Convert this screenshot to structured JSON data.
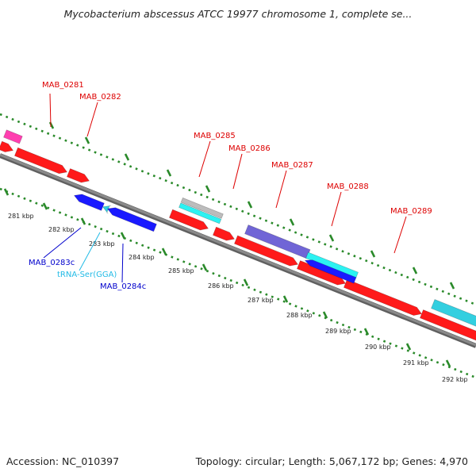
{
  "title": "Mycobacterium abscessus ATCC 19977 chromosome 1, complete se...",
  "footer": {
    "accession": "Accession: NC_010397",
    "summary": "Topology: circular; Length: 5,067,172 bp; Genes: 4,970"
  },
  "colors": {
    "backbone": "#8a8a8a",
    "ruler": "#2a8a2a",
    "red": "#ff1a1a",
    "blue": "#1a1aff",
    "cyan": "#2cf2f2",
    "lightblue": "#33cfe0",
    "purple": "#7065d6",
    "magenta": "#ff3fb0",
    "gray": "#bcbcbc",
    "label_red": "#dd0000",
    "label_blue": "#0000cc",
    "label_cyan": "#22bbe6"
  },
  "ruler": {
    "unit": "kbp",
    "labels": [
      "281 kbp",
      "282 kbp",
      "283 kbp",
      "284 kbp",
      "285 kbp",
      "286 kbp",
      "287 kbp",
      "288 kbp",
      "289 kbp",
      "290 kbp",
      "291 kbp",
      "292 kbp"
    ]
  },
  "genes": [
    {
      "label": "MAB_0281",
      "color": "label_red"
    },
    {
      "label": "MAB_0282",
      "color": "label_red"
    },
    {
      "label": "MAB_0285",
      "color": "label_red"
    },
    {
      "label": "MAB_0286",
      "color": "label_red"
    },
    {
      "label": "MAB_0287",
      "color": "label_red"
    },
    {
      "label": "MAB_0288",
      "color": "label_red"
    },
    {
      "label": "MAB_0289",
      "color": "label_red"
    },
    {
      "label": "MAB_0283c",
      "color": "label_blue"
    },
    {
      "label": "tRNA-Ser(GGA)",
      "color": "label_cyan"
    },
    {
      "label": "MAB_0284c",
      "color": "label_blue"
    }
  ]
}
